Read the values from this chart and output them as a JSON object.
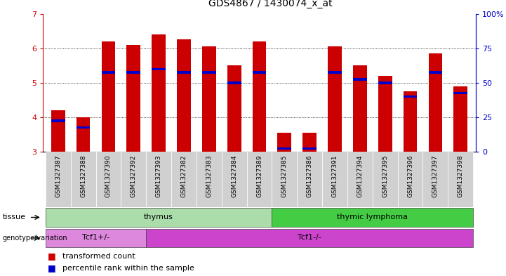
{
  "title": "GDS4867 / 1430074_x_at",
  "samples": [
    "GSM1327387",
    "GSM1327388",
    "GSM1327390",
    "GSM1327392",
    "GSM1327393",
    "GSM1327382",
    "GSM1327383",
    "GSM1327384",
    "GSM1327389",
    "GSM1327385",
    "GSM1327386",
    "GSM1327391",
    "GSM1327394",
    "GSM1327395",
    "GSM1327396",
    "GSM1327397",
    "GSM1327398"
  ],
  "transformed_count": [
    4.2,
    4.0,
    6.2,
    6.1,
    6.4,
    6.25,
    6.05,
    5.5,
    6.2,
    3.55,
    3.55,
    6.05,
    5.5,
    5.2,
    4.75,
    5.85,
    4.9
  ],
  "percentile_rank": [
    3.9,
    3.7,
    5.3,
    5.3,
    5.4,
    5.3,
    5.3,
    5.0,
    5.3,
    3.1,
    3.1,
    5.3,
    5.1,
    5.0,
    4.6,
    5.3,
    4.7
  ],
  "ylim": [
    3,
    7
  ],
  "yticks_left": [
    3,
    4,
    5,
    6,
    7
  ],
  "yticks_right": [
    0,
    25,
    50,
    75,
    100
  ],
  "bar_color": "#cc0000",
  "percentile_color": "#0000cc",
  "tissue_groups": [
    {
      "label": "thymus",
      "start": 0,
      "end": 9,
      "color": "#aaddaa"
    },
    {
      "label": "thymic lymphoma",
      "start": 9,
      "end": 17,
      "color": "#44cc44"
    }
  ],
  "genotype_groups": [
    {
      "label": "Tcf1+/-",
      "start": 0,
      "end": 4,
      "color": "#dd88dd"
    },
    {
      "label": "Tcf1-/-",
      "start": 4,
      "end": 17,
      "color": "#cc44cc"
    }
  ],
  "legend_items": [
    {
      "label": "transformed count",
      "color": "#cc0000"
    },
    {
      "label": "percentile rank within the sample",
      "color": "#0000cc"
    }
  ],
  "bar_width": 0.55,
  "tick_label_fontsize": 6.5,
  "title_fontsize": 10,
  "axis_color_left": "#cc0000",
  "axis_color_right": "#0000cc",
  "sample_bg_color": "#d0d0d0"
}
